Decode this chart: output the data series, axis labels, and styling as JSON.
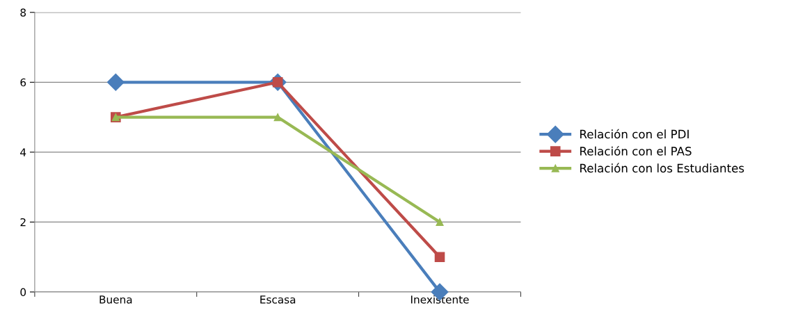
{
  "chart_data": {
    "type": "line",
    "categories": [
      "Buena",
      "Escasa",
      "Inexistente"
    ],
    "series": [
      {
        "name": "Relación con el PDI",
        "color": "#4a7ebb",
        "marker": "diamond",
        "values": [
          6,
          6,
          0
        ]
      },
      {
        "name": "Relación con el PAS",
        "color": "#be4b48",
        "marker": "square",
        "values": [
          5,
          6,
          1
        ]
      },
      {
        "name": "Relación con los Estudiantes",
        "color": "#98b954",
        "marker": "triangle",
        "values": [
          5,
          5,
          2
        ]
      }
    ],
    "ylim": [
      0,
      8
    ],
    "yticks": [
      0,
      2,
      4,
      6,
      8
    ],
    "grid": "y",
    "legend": "right",
    "line_style": "solid"
  }
}
